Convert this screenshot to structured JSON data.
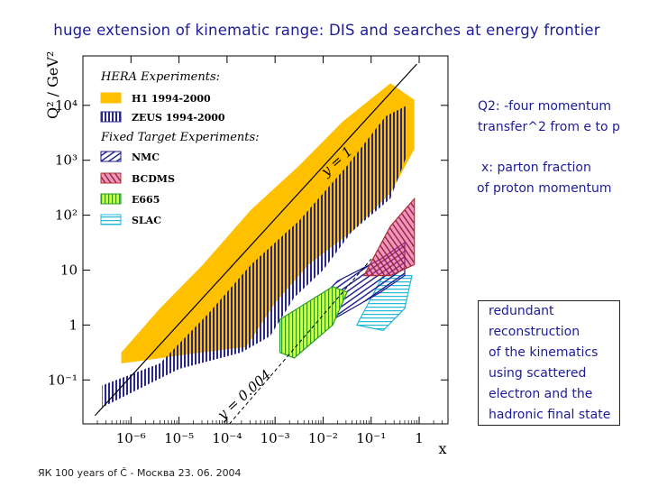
{
  "slide": {
    "title": "huge extension of kinematic range: DIS and searches at energy frontier",
    "footer": "ЯК 100 years of Č - Москва 23. 06. 2004"
  },
  "notes": {
    "q2": [
      "Q2: -four momentum",
      "transfer^2 from e to p"
    ],
    "x": [
      "x: parton fraction",
      "of proton momentum"
    ],
    "reconstruction": [
      "redundant",
      "reconstruction",
      "of the kinematics",
      "using scattered",
      "electron and the",
      "hadronic final state"
    ]
  },
  "colors": {
    "text_blue": "#1c1c9a",
    "h1": "#ffc000",
    "zeus": "#28288c",
    "nmc": "#1a1a8c",
    "bcdms": "#b03030",
    "e665": "#2a9a2a",
    "slac": "#22b8d8",
    "e665_fill": "#d8ff30",
    "bcdms_fill": "#e43c8c"
  },
  "chart_data": {
    "type": "kinematic-plane",
    "xlabel": "x",
    "ylabel": "Q² / GeV²",
    "x_log_ticks": [
      "10⁻⁶",
      "10⁻⁵",
      "10⁻⁴",
      "10⁻³",
      "10⁻²",
      "10⁻¹",
      "1"
    ],
    "y_log_ticks": [
      "10⁻¹",
      "1",
      "10",
      "10²",
      "10³",
      "10⁴"
    ],
    "xlim_log10": [
      -7,
      0.6
    ],
    "ylim_log10": [
      -1.8,
      4.9
    ],
    "legend_heading_hera": "HERA Experiments:",
    "legend_heading_fixed": "Fixed Target Experiments:",
    "legend": [
      {
        "name": "H1 1994-2000",
        "key": "h1"
      },
      {
        "name": "ZEUS 1994-2000",
        "key": "zeus"
      },
      {
        "name": "NMC",
        "key": "nmc"
      },
      {
        "name": "BCDMS",
        "key": "bcdms"
      },
      {
        "name": "E665",
        "key": "e665"
      },
      {
        "name": "SLAC",
        "key": "slac"
      }
    ],
    "annotations": [
      "y = 1",
      "y = 0.004"
    ],
    "regions": {
      "h1": [
        [
          -6.2,
          -0.5
        ],
        [
          -5.4,
          0.3
        ],
        [
          -4.5,
          1.1
        ],
        [
          -3.5,
          2.1
        ],
        [
          -2.5,
          2.9
        ],
        [
          -1.6,
          3.7
        ],
        [
          -0.6,
          4.4
        ],
        [
          -0.1,
          4.1
        ],
        [
          -0.1,
          3.2
        ],
        [
          -0.6,
          2.4
        ],
        [
          -1.4,
          1.7
        ],
        [
          -2.3,
          1.1
        ],
        [
          -3.0,
          0.4
        ],
        [
          -3.6,
          -0.4
        ],
        [
          -4.5,
          -0.5
        ],
        [
          -6.2,
          -0.7
        ]
      ],
      "zeus": [
        [
          -6.6,
          -1.1
        ],
        [
          -5.4,
          -0.7
        ],
        [
          -4.4,
          0.2
        ],
        [
          -3.5,
          1.1
        ],
        [
          -2.5,
          1.9
        ],
        [
          -1.5,
          2.9
        ],
        [
          -0.7,
          3.8
        ],
        [
          -0.25,
          4.0
        ],
        [
          -0.25,
          3.1
        ],
        [
          -0.6,
          2.3
        ],
        [
          -1.4,
          1.7
        ],
        [
          -2.0,
          1.0
        ],
        [
          -2.6,
          0.5
        ],
        [
          -3.1,
          -0.2
        ],
        [
          -3.7,
          -0.5
        ],
        [
          -5.0,
          -0.8
        ],
        [
          -6.6,
          -1.5
        ]
      ],
      "nmc": [
        [
          -2.6,
          0.0
        ],
        [
          -1.7,
          0.8
        ],
        [
          -0.8,
          1.2
        ],
        [
          -0.3,
          1.5
        ],
        [
          -0.3,
          0.9
        ],
        [
          -0.8,
          0.6
        ],
        [
          -1.8,
          0.1
        ],
        [
          -2.2,
          -0.3
        ]
      ],
      "bcdms": [
        [
          -1.15,
          0.9
        ],
        [
          -0.6,
          1.8
        ],
        [
          -0.1,
          2.3
        ],
        [
          -0.1,
          1.1
        ],
        [
          -0.6,
          0.9
        ]
      ],
      "e665": [
        [
          -2.9,
          -0.5
        ],
        [
          -2.9,
          0.1
        ],
        [
          -1.8,
          0.7
        ],
        [
          -1.5,
          0.6
        ],
        [
          -1.8,
          0.0
        ],
        [
          -2.6,
          -0.6
        ]
      ],
      "slac": [
        [
          -1.3,
          0.0
        ],
        [
          -0.75,
          0.9
        ],
        [
          -0.15,
          0.9
        ],
        [
          -0.3,
          0.3
        ],
        [
          -0.75,
          -0.1
        ]
      ]
    }
  }
}
